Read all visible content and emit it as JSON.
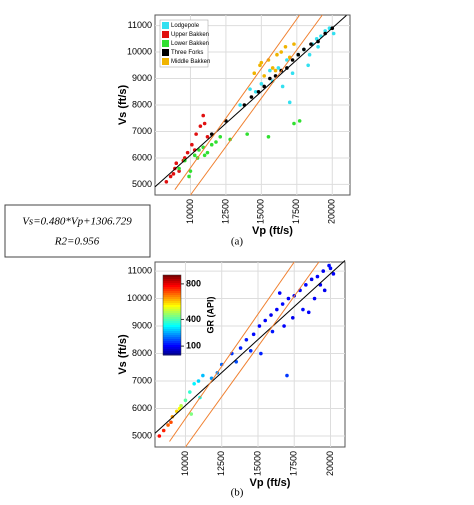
{
  "chart_data": [
    {
      "type": "scatter",
      "xlabel": "Vp (ft/s)",
      "ylabel": "Vs (ft/s)",
      "xlim": [
        7500,
        21250
      ],
      "ylim": [
        4600,
        11400
      ],
      "xticks": [
        10000,
        12500,
        15000,
        17500,
        20000
      ],
      "yticks": [
        5000,
        6000,
        7000,
        8000,
        9000,
        10000,
        11000
      ],
      "grid": true,
      "legend": "upper left",
      "annotations": [
        "Vs=0.480*Vp+1306.729",
        "R2=0.956"
      ],
      "caption": "(a)",
      "series": [
        {
          "name": "Lodgepole",
          "color": "#33e0f0",
          "x": [
            14200,
            15000,
            15600,
            16200,
            16800,
            17200,
            17600,
            18000,
            18300,
            18600,
            18900,
            19200,
            19500,
            19800,
            20100,
            16500,
            17000,
            15800,
            18400,
            19000,
            14600,
            13500
          ],
          "values": [
            8600,
            8800,
            9300,
            9400,
            9700,
            9200,
            9900,
            10100,
            9500,
            10300,
            10500,
            10600,
            10800,
            10900,
            10700,
            8700,
            8100,
            8900,
            9900,
            10200,
            8500,
            8000
          ]
        },
        {
          "name": "Upper Bakken",
          "color": "#e01010",
          "x": [
            8300,
            8600,
            8900,
            9200,
            9500,
            9800,
            10100,
            10400,
            10700,
            11000,
            9000,
            9600,
            10300,
            8800,
            11200,
            10900
          ],
          "values": [
            5100,
            5300,
            5600,
            5500,
            5900,
            6200,
            6500,
            6900,
            7200,
            7300,
            5800,
            6000,
            6300,
            5400,
            6800,
            7600
          ]
        },
        {
          "name": "Lower Bakken",
          "color": "#30e030",
          "x": [
            9200,
            9600,
            10000,
            10300,
            10600,
            10900,
            11200,
            11500,
            11800,
            12100,
            10500,
            11000,
            9900,
            14000,
            15500,
            17300,
            17700,
            12800
          ],
          "values": [
            5600,
            5900,
            5500,
            6100,
            6300,
            6400,
            6200,
            6500,
            6600,
            6800,
            6000,
            6100,
            5300,
            6900,
            6800,
            7300,
            7400,
            6700
          ]
        },
        {
          "name": "Three Forks",
          "color": "#000000",
          "x": [
            13800,
            14300,
            14800,
            15200,
            15600,
            16000,
            16400,
            16800,
            17200,
            17600,
            18000,
            18500,
            19000,
            19500,
            20000,
            12500,
            11500
          ],
          "values": [
            8000,
            8300,
            8500,
            8700,
            9000,
            9100,
            9300,
            9400,
            9700,
            9900,
            10100,
            10300,
            10400,
            10700,
            10900,
            7400,
            6900
          ]
        },
        {
          "name": "Middle Bakken",
          "color": "#f0b400",
          "x": [
            14500,
            14900,
            15200,
            15500,
            15800,
            16100,
            16400,
            16700,
            17000,
            17300,
            15000,
            16000
          ],
          "values": [
            9200,
            9500,
            9100,
            9700,
            9400,
            9900,
            10000,
            10200,
            9800,
            10300,
            9600,
            9300
          ]
        }
      ],
      "lines": [
        {
          "color": "#000000",
          "x": [
            7500,
            21000
          ],
          "values": [
            4906,
            11386
          ]
        },
        {
          "color": "#f08030",
          "x": [
            8900,
            17700
          ],
          "values": [
            4800,
            11400
          ]
        },
        {
          "color": "#f08030",
          "x": [
            10000,
            19300
          ],
          "values": [
            4600,
            11400
          ]
        }
      ]
    },
    {
      "type": "scatter",
      "xlabel": "Vp (ft/s)",
      "ylabel": "Vs (ft/s)",
      "xlim": [
        7900,
        21000
      ],
      "ylim": [
        4600,
        11330
      ],
      "xticks": [
        10000,
        12500,
        15000,
        17500,
        20000
      ],
      "yticks": [
        5000,
        6000,
        7000,
        8000,
        9000,
        10000,
        11000
      ],
      "grid": true,
      "caption": "(b)",
      "colorbar": {
        "label": "GR (API)",
        "lim": [
          0,
          900
        ],
        "ticks": [
          100,
          400,
          800
        ]
      },
      "series": [
        {
          "x": [
            8200,
            8500,
            8800,
            9100,
            9400,
            9700,
            10000,
            10300,
            10600,
            10900,
            11200,
            9000,
            9600,
            10400,
            11000,
            11800,
            12500,
            13200,
            13800,
            14200,
            14700,
            15100,
            15500,
            15900,
            16300,
            16700,
            17100,
            17500,
            17900,
            18300,
            18700,
            19100,
            19500,
            19900,
            20200,
            16000,
            16800,
            17400,
            18100,
            18900,
            19600,
            15200,
            14500,
            17000,
            18500,
            19300,
            20000,
            16500,
            13500,
            12200
          ],
          "values": [
            5000,
            5200,
            5400,
            5700,
            5900,
            6100,
            6300,
            6600,
            6900,
            7000,
            7200,
            5500,
            6000,
            5800,
            6400,
            7100,
            7600,
            8000,
            8200,
            8500,
            8700,
            9000,
            9200,
            9400,
            9600,
            9800,
            10000,
            10100,
            10300,
            10500,
            10700,
            10800,
            11000,
            11200,
            10900,
            8800,
            9000,
            9300,
            9600,
            10000,
            10300,
            8000,
            8100,
            7200,
            9500,
            10500,
            11100,
            10200,
            7700,
            7300
          ],
          "gr": [
            780,
            760,
            700,
            650,
            600,
            500,
            420,
            380,
            330,
            300,
            280,
            720,
            560,
            450,
            350,
            250,
            200,
            160,
            140,
            130,
            120,
            110,
            110,
            100,
            110,
            120,
            110,
            100,
            110,
            120,
            100,
            110,
            100,
            120,
            110,
            130,
            110,
            100,
            120,
            110,
            100,
            140,
            150,
            160,
            110,
            100,
            120,
            110,
            180,
            230
          ]
        }
      ],
      "lines": [
        {
          "color": "#000000",
          "x": [
            7900,
            21000
          ],
          "values": [
            5100,
            11386
          ]
        },
        {
          "color": "#f08030",
          "x": [
            8900,
            17500
          ],
          "values": [
            4800,
            11330
          ]
        },
        {
          "color": "#f08030",
          "x": [
            10000,
            19200
          ],
          "values": [
            4600,
            11330
          ]
        }
      ]
    }
  ]
}
